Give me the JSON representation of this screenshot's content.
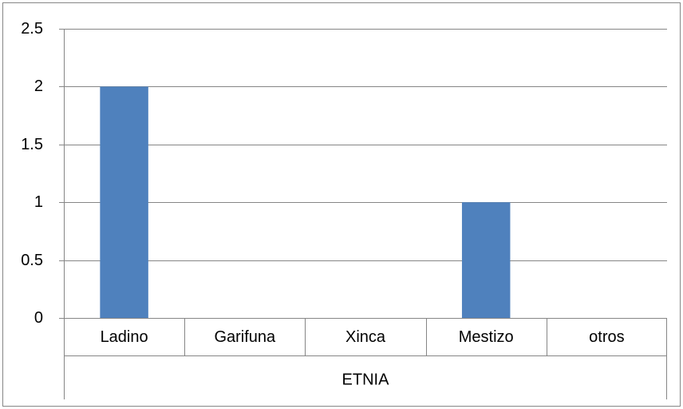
{
  "chart_data": {
    "type": "bar",
    "categories": [
      "Ladino",
      "Garifuna",
      "Xinca",
      "Mestizo",
      "otros"
    ],
    "group_label": "ETNIA",
    "series": [
      {
        "values": [
          2,
          0,
          0,
          1,
          0
        ],
        "color": "#4f81bd"
      }
    ],
    "ylim": [
      0,
      2.5
    ],
    "yticks": [
      0,
      0.5,
      1,
      1.5,
      2,
      2.5
    ],
    "ytick_labels": [
      "0",
      "0.5",
      "1",
      "1.5",
      "2",
      "2.5"
    ],
    "grid": true,
    "title": "",
    "xlabel": "",
    "ylabel": ""
  },
  "colors": {
    "gridline": "#868686",
    "border": "#868686",
    "bar": "#4f81bd"
  }
}
